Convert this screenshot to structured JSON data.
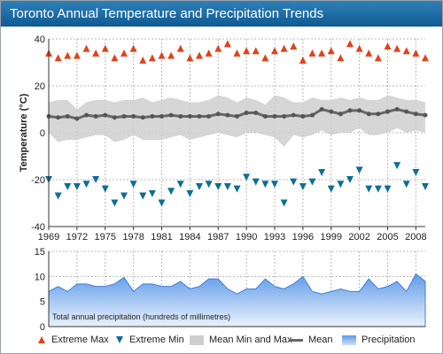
{
  "window": {
    "title": "Toronto Annual Temperature and Precipitation Trends"
  },
  "legend": {
    "items": [
      {
        "label": "Extreme Max",
        "icon": "triangle-up-icon",
        "color": "#e0431b"
      },
      {
        "label": "Extreme Min",
        "icon": "triangle-down-icon",
        "color": "#0d6e97"
      },
      {
        "label": "Mean Min and Max",
        "icon": "grey-square-icon",
        "color": "#cfcfcf"
      },
      {
        "label": "Mean",
        "icon": "line-icon",
        "color": "#666666"
      },
      {
        "label": "Precipitation",
        "icon": "blue-square-icon",
        "color": "#5f9be8"
      }
    ]
  },
  "chart_data": [
    {
      "type": "line",
      "ylabel": "Temperature (°C)",
      "xlabel": "",
      "ylim": [
        -40,
        40
      ],
      "xlim": [
        1969,
        2009
      ],
      "yticks": [
        -40,
        -20,
        0,
        20,
        40
      ],
      "xticks": [
        1969,
        1972,
        1975,
        1978,
        1981,
        1984,
        1987,
        1990,
        1993,
        1996,
        1999,
        2002,
        2005,
        2008
      ],
      "grid": true,
      "x": [
        1969,
        1970,
        1971,
        1972,
        1973,
        1974,
        1975,
        1976,
        1977,
        1978,
        1979,
        1980,
        1981,
        1982,
        1983,
        1984,
        1985,
        1986,
        1987,
        1988,
        1989,
        1990,
        1991,
        1992,
        1993,
        1994,
        1995,
        1996,
        1997,
        1998,
        1999,
        2000,
        2001,
        2002,
        2003,
        2004,
        2005,
        2006,
        2007,
        2008,
        2009
      ],
      "series": [
        {
          "name": "Extreme Max",
          "marker": "triangle-up",
          "color": "#e0431b",
          "values": [
            34,
            32,
            33,
            33,
            36,
            34,
            36,
            32,
            34,
            36,
            31,
            32,
            33,
            33,
            36,
            32,
            33,
            34,
            36,
            38,
            34,
            35,
            35,
            32,
            35,
            36,
            37,
            31,
            34,
            34,
            35,
            32,
            38,
            36,
            34,
            32,
            37,
            36,
            35,
            34,
            32
          ]
        },
        {
          "name": "Extreme Min",
          "marker": "triangle-down",
          "color": "#0d6e97",
          "values": [
            -20,
            -27,
            -23,
            -23,
            -22,
            -20,
            -24,
            -30,
            -27,
            -22,
            -27,
            -26,
            -30,
            -25,
            -22,
            -26,
            -23,
            -22,
            -23,
            -23,
            -24,
            -19,
            -21,
            -22,
            -22,
            -30,
            -21,
            -23,
            -21,
            -17,
            -24,
            -22,
            -20,
            -16,
            -24,
            -24,
            -24,
            -14,
            -22,
            -17,
            -23
          ]
        },
        {
          "name": "Mean Min and Max",
          "type": "band",
          "color": "#cfcfcf",
          "upper": [
            13,
            14,
            14,
            10,
            13,
            14,
            14,
            13,
            14,
            14,
            15,
            13,
            14,
            15,
            14,
            13,
            13,
            14,
            16,
            15,
            13,
            15,
            14,
            12,
            16,
            15,
            13,
            13,
            15,
            14,
            14,
            15,
            14,
            15,
            14,
            14,
            16,
            15,
            14,
            14,
            13
          ],
          "lower": [
            0,
            -4,
            -3,
            -3,
            -2,
            -1,
            -1,
            -4,
            -3,
            -1,
            -3,
            -3,
            -3,
            -2,
            -1,
            -3,
            -2,
            -1,
            0,
            -1,
            -2,
            0,
            0,
            -1,
            -2,
            -6,
            -1,
            -2,
            -1,
            1,
            -1,
            0,
            0,
            2,
            -1,
            -1,
            0,
            2,
            0,
            1,
            0
          ]
        },
        {
          "name": "Mean",
          "type": "line",
          "color": "#666666",
          "values": [
            7,
            6.5,
            7,
            6,
            7.5,
            7,
            7.5,
            6.5,
            7,
            7,
            6.5,
            7,
            7,
            7.5,
            7,
            7,
            7,
            7,
            8,
            7.5,
            7,
            8.5,
            8.5,
            7,
            7,
            7,
            7.5,
            7,
            7.5,
            10,
            9,
            8,
            9.5,
            9.5,
            8,
            8,
            9,
            10,
            9,
            8,
            7.5
          ]
        }
      ]
    },
    {
      "type": "area",
      "name": "Precipitation",
      "color": "#5f9be8",
      "ylim": [
        0,
        15
      ],
      "yticks": [
        0,
        5,
        10,
        15
      ],
      "annotation": "Total annual precipitation (hundreds of millimetres)",
      "x": [
        1969,
        1970,
        1971,
        1972,
        1973,
        1974,
        1975,
        1976,
        1977,
        1978,
        1979,
        1980,
        1981,
        1982,
        1983,
        1984,
        1985,
        1986,
        1987,
        1988,
        1989,
        1990,
        1991,
        1992,
        1993,
        1994,
        1995,
        1996,
        1997,
        1998,
        1999,
        2000,
        2001,
        2002,
        2003,
        2004,
        2005,
        2006,
        2007,
        2008,
        2009
      ],
      "values": [
        7,
        8,
        7,
        8.5,
        8.5,
        8,
        8,
        8.5,
        9.8,
        7,
        8.5,
        8.5,
        8,
        8,
        9,
        7.5,
        8,
        9.5,
        9.5,
        7.5,
        6.5,
        7.5,
        7.5,
        9.5,
        8,
        7.5,
        8.5,
        10,
        7,
        6.5,
        7,
        7.5,
        7,
        7,
        9.5,
        7.5,
        8,
        9,
        7,
        10.5,
        9
      ]
    }
  ]
}
